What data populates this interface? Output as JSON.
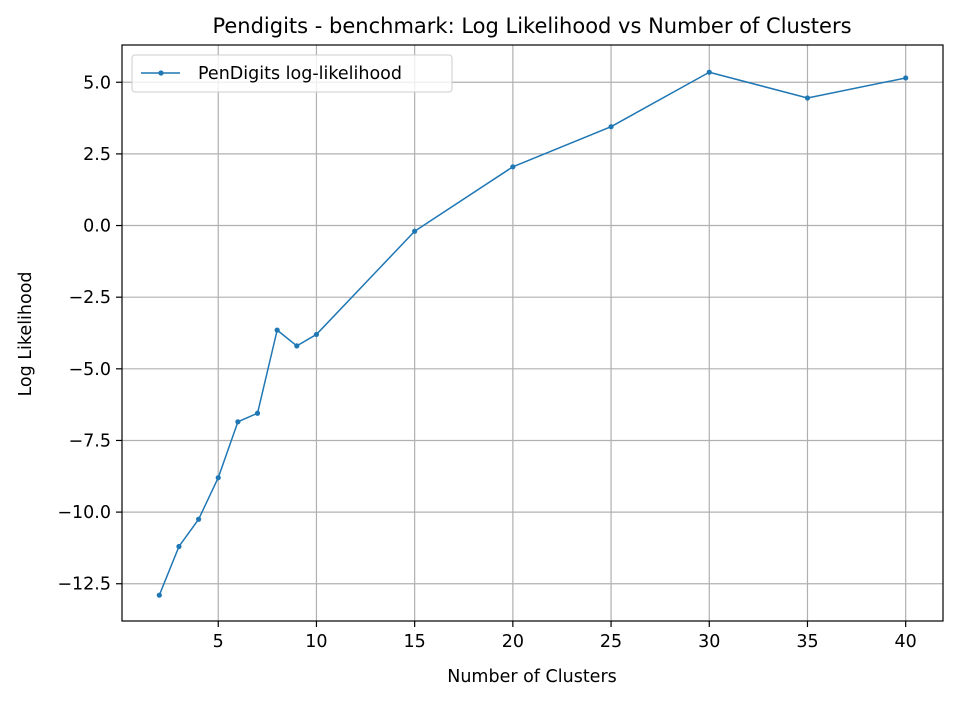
{
  "chart_data": {
    "type": "line",
    "title": "Pendigits - benchmark: Log Likelihood vs Number of Clusters",
    "xlabel": "Number of Clusters",
    "ylabel": "Log Likelihood",
    "xlim": [
      0.1,
      41.9
    ],
    "ylim": [
      -13.8,
      6.3
    ],
    "x_ticks": [
      5,
      10,
      15,
      20,
      25,
      30,
      35,
      40
    ],
    "x_tick_labels": [
      "5",
      "10",
      "15",
      "20",
      "25",
      "30",
      "35",
      "40"
    ],
    "y_ticks": [
      -12.5,
      -10.0,
      -7.5,
      -5.0,
      -2.5,
      0.0,
      2.5,
      5.0
    ],
    "y_tick_labels": [
      "−12.5",
      "−10.0",
      "−7.5",
      "−5.0",
      "−2.5",
      "0.0",
      "2.5",
      "5.0"
    ],
    "grid": true,
    "legend_position": "top-left",
    "series": [
      {
        "name": "PenDigits log-likelihood",
        "color": "#1f77b4",
        "marker": "dot",
        "x": [
          2,
          3,
          4,
          5,
          6,
          7,
          8,
          9,
          10,
          15,
          20,
          25,
          30,
          35,
          40
        ],
        "y": [
          -12.9,
          -11.2,
          -10.25,
          -8.8,
          -6.85,
          -6.55,
          -3.65,
          -4.2,
          -3.8,
          -0.2,
          2.05,
          3.45,
          5.35,
          4.45,
          5.15
        ]
      }
    ]
  }
}
